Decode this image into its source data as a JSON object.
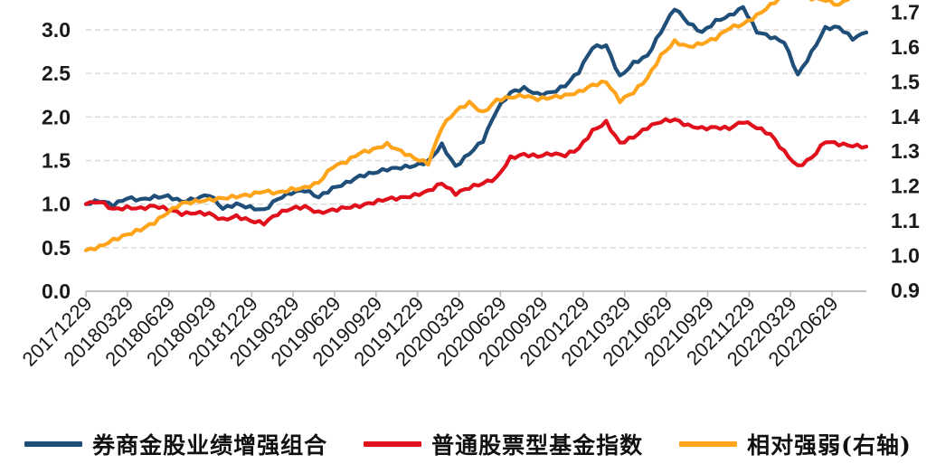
{
  "chart_data": {
    "type": "line",
    "title": "",
    "legend_position": "bottom",
    "grid": true,
    "x_tick_labels": [
      "20171229",
      "20180329",
      "20180629",
      "20180929",
      "20181229",
      "20190329",
      "20190629",
      "20190929",
      "20191229",
      "20200329",
      "20200629",
      "20200929",
      "20201229",
      "20210329",
      "20210629",
      "20210929",
      "20211229",
      "20220329",
      "20220629"
    ],
    "left_axis": {
      "ticks": [
        "0.0",
        "0.5",
        "1.0",
        "1.5",
        "2.0",
        "2.5",
        "3.0"
      ],
      "min": 0.0,
      "max": 3.34
    },
    "right_axis": {
      "ticks": [
        "0.9",
        "1.0",
        "1.1",
        "1.2",
        "1.3",
        "1.4",
        "1.5",
        "1.6",
        "1.7"
      ],
      "min": 0.9,
      "max": 1.733
    },
    "series": [
      {
        "name": "券商金股业绩增强组合",
        "color": "#1f4e79",
        "axis": "left",
        "values": [
          1.0,
          1.04,
          0.99,
          1.07,
          1.05,
          1.08,
          1.09,
          1.03,
          1.06,
          1.11,
          0.95,
          1.0,
          0.96,
          0.93,
          1.06,
          1.13,
          1.16,
          1.08,
          1.18,
          1.24,
          1.32,
          1.36,
          1.4,
          1.42,
          1.44,
          1.49,
          1.68,
          1.43,
          1.58,
          1.73,
          2.08,
          2.28,
          2.33,
          2.26,
          2.28,
          2.36,
          2.52,
          2.8,
          2.82,
          2.46,
          2.62,
          2.7,
          2.98,
          3.25,
          3.08,
          2.97,
          3.1,
          3.16,
          3.26,
          2.98,
          2.92,
          2.86,
          2.48,
          2.74,
          3.02,
          3.03,
          2.9,
          2.97
        ]
      },
      {
        "name": "普通股票型基金指数",
        "color": "#e0101c",
        "axis": "left",
        "values": [
          1.0,
          1.03,
          0.94,
          0.96,
          0.95,
          0.98,
          0.94,
          0.89,
          0.9,
          0.89,
          0.82,
          0.86,
          0.81,
          0.78,
          0.89,
          0.95,
          0.97,
          0.9,
          0.93,
          0.96,
          0.98,
          1.02,
          1.06,
          1.07,
          1.1,
          1.15,
          1.24,
          1.12,
          1.19,
          1.24,
          1.3,
          1.53,
          1.57,
          1.55,
          1.58,
          1.56,
          1.64,
          1.84,
          1.94,
          1.7,
          1.77,
          1.88,
          1.95,
          1.97,
          1.9,
          1.87,
          1.88,
          1.87,
          1.95,
          1.88,
          1.8,
          1.6,
          1.43,
          1.53,
          1.72,
          1.69,
          1.67,
          1.66
        ]
      },
      {
        "name": "相对强弱(右轴)",
        "color": "#ffa41b",
        "axis": "right",
        "values": [
          1.015,
          1.025,
          1.045,
          1.06,
          1.075,
          1.095,
          1.125,
          1.15,
          1.155,
          1.16,
          1.165,
          1.17,
          1.175,
          1.185,
          1.18,
          1.19,
          1.195,
          1.21,
          1.255,
          1.27,
          1.295,
          1.305,
          1.32,
          1.3,
          1.28,
          1.265,
          1.37,
          1.415,
          1.44,
          1.41,
          1.447,
          1.455,
          1.46,
          1.45,
          1.455,
          1.46,
          1.47,
          1.49,
          1.5,
          1.445,
          1.47,
          1.51,
          1.575,
          1.615,
          1.6,
          1.61,
          1.625,
          1.655,
          1.665,
          1.69,
          1.72,
          1.75,
          1.76,
          1.74,
          1.735,
          1.72,
          1.75,
          1.765
        ]
      }
    ],
    "colors": {
      "gridline": "#d9d9d9",
      "axis_line": "#bfbfbf",
      "tick_text": "#1a1a1a"
    }
  }
}
